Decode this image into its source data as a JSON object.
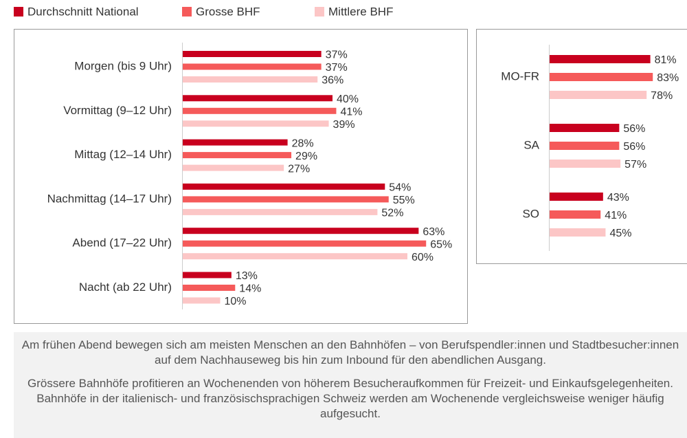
{
  "chart_data": [
    {
      "type": "bar",
      "orientation": "horizontal",
      "categories": [
        "Morgen (bis 9 Uhr)",
        "Vormittag (9–12 Uhr)",
        "Mittag (12–14 Uhr)",
        "Nachmittag (14–17 Uhr)",
        "Abend (17–22 Uhr)",
        "Nacht (ab 22 Uhr)"
      ],
      "series": [
        {
          "name": "Durchschnitt National",
          "color": "#c8001e",
          "values": [
            37,
            40,
            28,
            54,
            63,
            13
          ],
          "value_labels": [
            "37%",
            "40%",
            "28%",
            "54%",
            "63%",
            "13%"
          ]
        },
        {
          "name": "Grosse BHF",
          "color": "#f55a5a",
          "values": [
            37,
            41,
            29,
            55,
            65,
            14
          ],
          "value_labels": [
            "37%",
            "41%",
            "29%",
            "55%",
            "65%",
            "14%"
          ]
        },
        {
          "name": "Mittlere BHF",
          "color": "#fcc6c6",
          "values": [
            36,
            39,
            27,
            52,
            60,
            10
          ],
          "value_labels": [
            "36%",
            "39%",
            "27%",
            "52%",
            "60%",
            "10%"
          ]
        }
      ]
    },
    {
      "type": "bar",
      "orientation": "horizontal",
      "categories": [
        "MO-FR",
        "SA",
        "SO"
      ],
      "series": [
        {
          "color": "#c8001e",
          "values": [
            81,
            56,
            43
          ],
          "value_labels": [
            "81%",
            "56%",
            "43%"
          ]
        },
        {
          "color": "#f55a5a",
          "values": [
            83,
            56,
            41
          ],
          "value_labels": [
            "83%",
            "56%",
            "41%"
          ]
        },
        {
          "color": "#fcc6c6",
          "values": [
            78,
            57,
            45
          ],
          "value_labels": [
            "78%",
            "57%",
            "45%"
          ]
        }
      ]
    }
  ],
  "notes": [
    "Am frühen Abend bewegen sich am meisten Menschen an den Bahnhöfen – von Berufspendler:innen und Stadtbesucher:innen auf dem Nachhauseweg bis hin zum Inbound für den abendlichen Ausgang.",
    "Grössere Bahnhöfe profitieren an Wochenenden von höherem Besucheraufkommen für Freizeit- und Einkaufsgelegenheiten. Bahnhöfe in der italienisch- und französischsprachigen Schweiz werden am Wochenende vergleichsweise weniger häufig aufgesucht."
  ]
}
